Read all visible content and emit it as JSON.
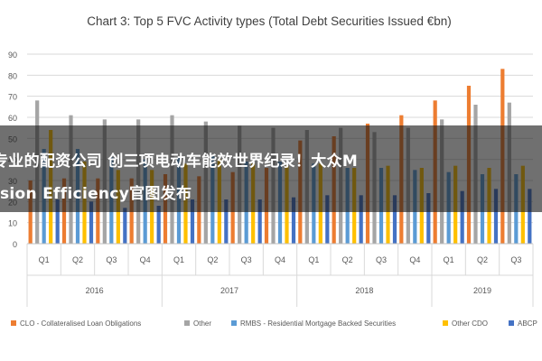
{
  "chart_data": {
    "type": "bar",
    "title": "Chart 3: Top 5 FVC Activity types (Total Debt Securities Issued €bn)",
    "xlabel": "",
    "ylabel": "",
    "ylim": [
      0,
      90
    ],
    "yticks": [
      0,
      10,
      20,
      30,
      40,
      50,
      60,
      70,
      80,
      90
    ],
    "grid": true,
    "legend_position": "bottom",
    "categories": [
      "Q1",
      "Q2",
      "Q3",
      "Q4",
      "Q1",
      "Q2",
      "Q3",
      "Q4",
      "Q1",
      "Q2",
      "Q3",
      "Q4",
      "Q1",
      "Q2",
      "Q3"
    ],
    "year_groups": [
      {
        "label": "2016",
        "span": 4
      },
      {
        "label": "2017",
        "span": 4
      },
      {
        "label": "2018",
        "span": 4
      },
      {
        "label": "2019",
        "span": 3
      }
    ],
    "series": [
      {
        "name": "CLO - Collateralised Loan Obligations",
        "color": "#ed7d31",
        "values": [
          30,
          31,
          31,
          31,
          33,
          32,
          34,
          36,
          49,
          51,
          57,
          61,
          68,
          75,
          83
        ]
      },
      {
        "name": "Other",
        "color": "#a5a5a5",
        "values": [
          68,
          61,
          59,
          59,
          61,
          58,
          56,
          55,
          54,
          55,
          53,
          55,
          59,
          66,
          67
        ]
      },
      {
        "name": "RMBS - Residential Mortgage Backed Securities",
        "color": "#5b9bd5",
        "values": [
          45,
          45,
          41,
          40,
          41,
          42,
          39,
          39,
          38,
          36,
          36,
          35,
          34,
          33,
          33
        ]
      },
      {
        "name": "Other CDO",
        "color": "#ffc000",
        "values": [
          54,
          39,
          35,
          35,
          38,
          40,
          38,
          37,
          38,
          36,
          37,
          36,
          37,
          36,
          37
        ]
      },
      {
        "name": "ABCP",
        "color": "#4472c4",
        "values": [
          21,
          20,
          17,
          18,
          21,
          21,
          21,
          22,
          23,
          23,
          23,
          24,
          25,
          26,
          26
        ]
      }
    ]
  },
  "overlay": {
    "line1": "专业的配资公司 创三项电动车能效世界纪录！大众M",
    "line2": "sion Efficiency官图发布"
  },
  "colors": {
    "grid": "#d9d9d9",
    "axis_text": "#595959",
    "title_text": "#404040"
  }
}
